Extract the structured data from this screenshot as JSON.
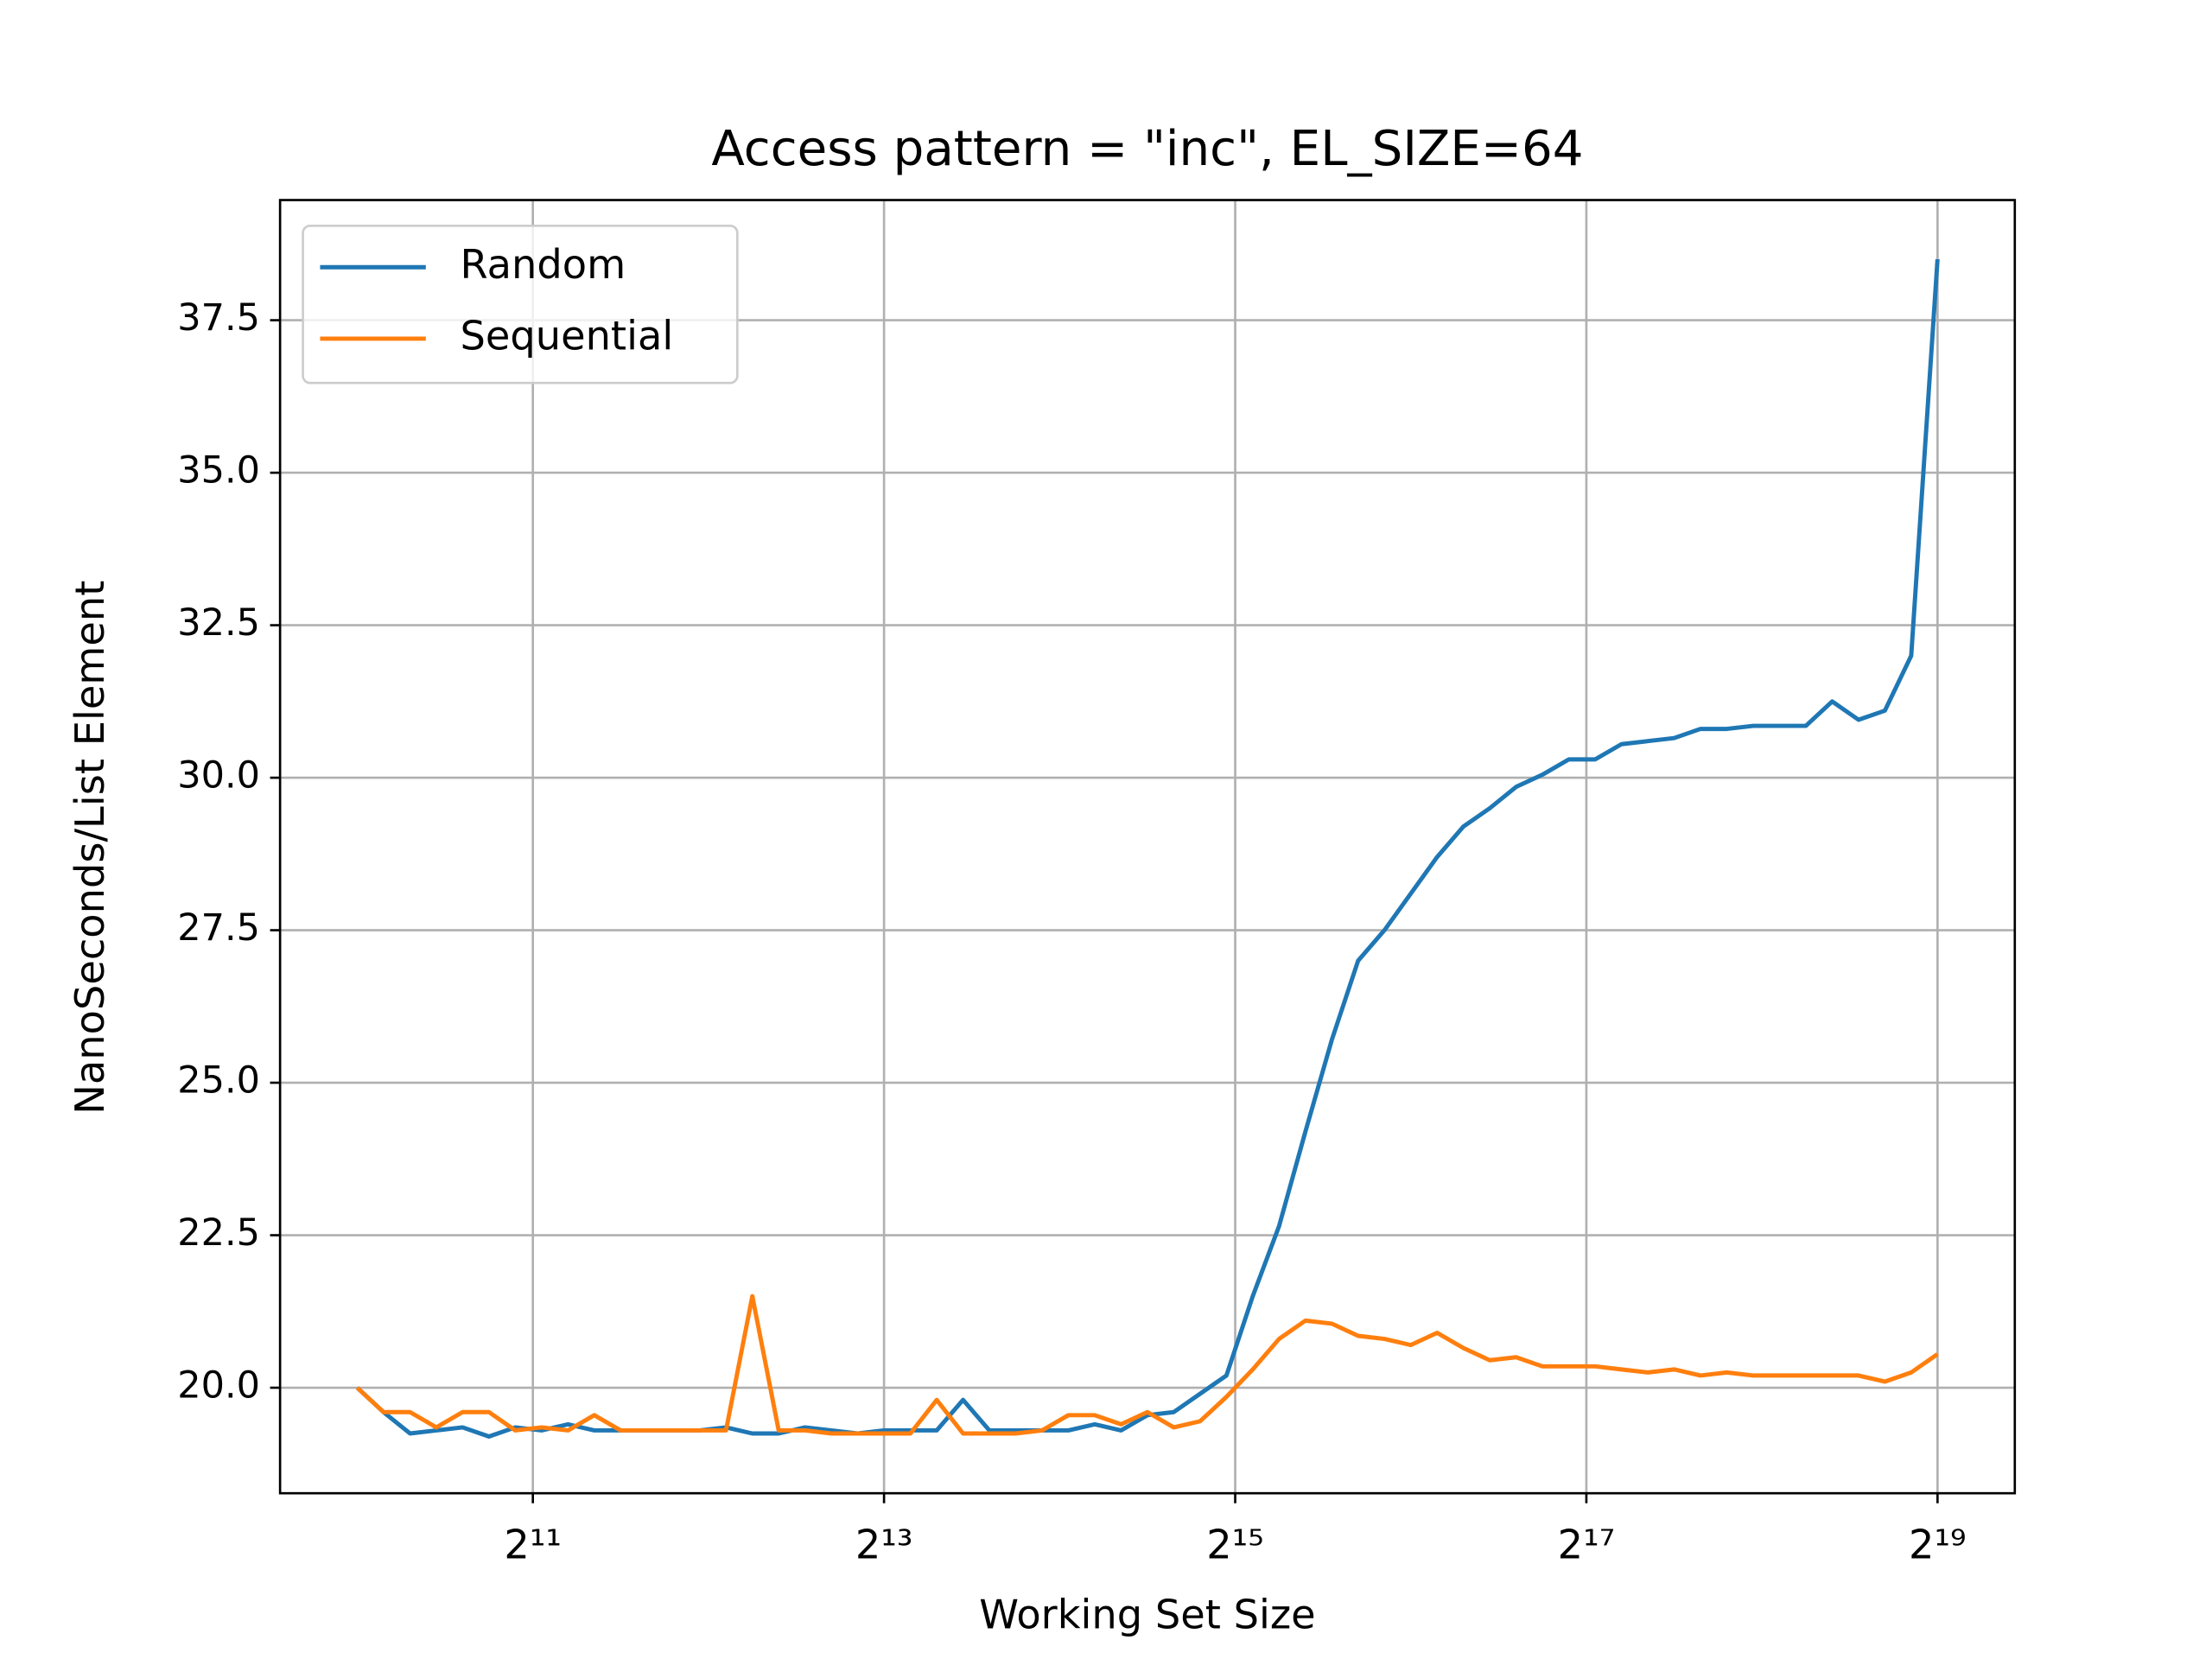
{
  "chart_data": {
    "type": "line",
    "title": "Access pattern = \"inc\", EL_SIZE=64",
    "x_label": "Working Set Size",
    "y_label": "NanoSeconds/List Element",
    "x_scale": "log",
    "x_log_base": 2,
    "grid": true,
    "legend": "upper left",
    "x": [
      1024,
      1136,
      1261,
      1399,
      1552,
      1722,
      1911,
      2120,
      2353,
      2610,
      2896,
      3214,
      3566,
      3957,
      4390,
      4871,
      5405,
      5997,
      6654,
      7383,
      8192,
      9090,
      10086,
      11191,
      12417,
      13777,
      15287,
      16962,
      18820,
      20882,
      23170,
      25709,
      28526,
      31652,
      35120,
      38968,
      43238,
      47976,
      53233,
      59066,
      65536,
      72717,
      80684,
      89525,
      99334,
      110218,
      122295,
      135696,
      150564,
      167062,
      185368,
      205679,
      228215,
      253221,
      280967,
      311753,
      345912,
      383814,
      425869,
      472533,
      524288
    ],
    "series": [
      {
        "name": "Random",
        "color": "#1f77b4",
        "values": [
          20.0,
          19.6,
          19.25,
          19.3,
          19.35,
          19.2,
          19.35,
          19.3,
          19.4,
          19.3,
          19.3,
          19.3,
          19.3,
          19.3,
          19.35,
          19.25,
          19.25,
          19.35,
          19.3,
          19.25,
          19.3,
          19.3,
          19.3,
          19.8,
          19.3,
          19.3,
          19.3,
          19.3,
          19.4,
          19.3,
          19.55,
          19.6,
          19.9,
          20.2,
          21.5,
          22.65,
          24.2,
          25.7,
          27.0,
          27.5,
          28.1,
          28.7,
          29.2,
          29.5,
          29.85,
          30.05,
          30.3,
          30.3,
          30.55,
          30.6,
          30.65,
          30.8,
          30.8,
          30.85,
          30.85,
          30.85,
          31.25,
          30.95,
          31.1,
          32.0,
          38.5
        ]
      },
      {
        "name": "Sequential",
        "color": "#ff7f0e",
        "values": [
          20.0,
          19.6,
          19.6,
          19.35,
          19.6,
          19.6,
          19.3,
          19.35,
          19.3,
          19.55,
          19.3,
          19.3,
          19.3,
          19.3,
          19.3,
          21.5,
          19.3,
          19.3,
          19.25,
          19.25,
          19.25,
          19.25,
          19.8,
          19.25,
          19.25,
          19.25,
          19.3,
          19.55,
          19.55,
          19.4,
          19.6,
          19.35,
          19.45,
          19.85,
          20.3,
          20.8,
          21.1,
          21.05,
          20.85,
          20.8,
          20.7,
          20.9,
          20.65,
          20.45,
          20.5,
          20.35,
          20.35,
          20.35,
          20.3,
          20.25,
          20.3,
          20.2,
          20.25,
          20.2,
          20.2,
          20.2,
          20.2,
          20.2,
          20.1,
          20.25,
          20.55
        ]
      }
    ],
    "xlim": [
      755,
      711300
    ],
    "ylim": [
      18.27,
      39.47
    ],
    "xticks": [
      {
        "value": 2048,
        "label": "2¹¹"
      },
      {
        "value": 8192,
        "label": "2¹³"
      },
      {
        "value": 32768,
        "label": "2¹⁵"
      },
      {
        "value": 131072,
        "label": "2¹⁷"
      },
      {
        "value": 524288,
        "label": "2¹⁹"
      }
    ],
    "yticks": [
      {
        "value": 20,
        "label": "20.0"
      },
      22.5,
      {
        "value": 25,
        "label": "25.0"
      },
      27.5,
      {
        "value": 30,
        "label": "30.0"
      },
      32.5,
      {
        "value": 35,
        "label": "35.0"
      },
      37.5
    ]
  }
}
